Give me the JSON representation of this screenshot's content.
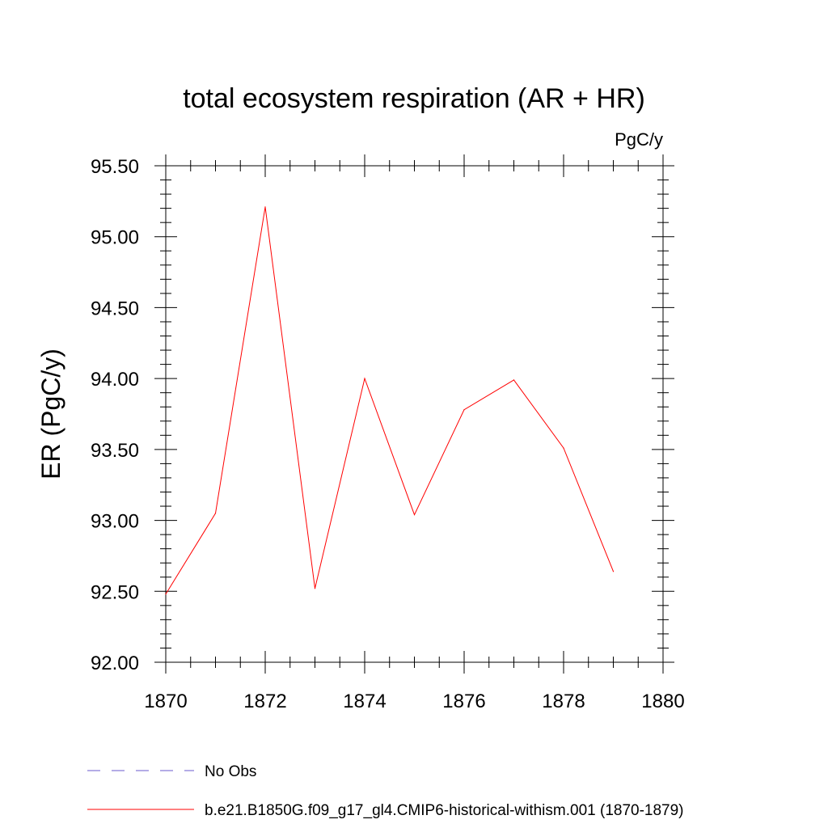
{
  "chart_data": {
    "type": "line",
    "title": "total ecosystem respiration (AR + HR)",
    "units_label": "PgC/y",
    "ylabel": "ER  (PgC/y)",
    "xlabel": "",
    "xlim": [
      1870,
      1880
    ],
    "ylim": [
      92.0,
      95.5
    ],
    "x_ticks": [
      1870,
      1872,
      1874,
      1876,
      1878,
      1880
    ],
    "x_tick_labels": [
      "1870",
      "1872",
      "1874",
      "1876",
      "1878",
      "1880"
    ],
    "y_ticks": [
      92.0,
      92.5,
      93.0,
      93.5,
      94.0,
      94.5,
      95.0,
      95.5
    ],
    "y_tick_labels": [
      "92.00",
      "92.50",
      "93.00",
      "93.50",
      "94.00",
      "94.50",
      "95.00",
      "95.50"
    ],
    "grid": false,
    "series": [
      {
        "name": "b.e21.B1850G.f09_g17_gl4.CMIP6-historical-withism.001 (1870-1879)",
        "color": "#ff0000",
        "line_style": "solid",
        "x": [
          1870,
          1871,
          1872,
          1873,
          1874,
          1875,
          1876,
          1877,
          1878,
          1879
        ],
        "y": [
          92.48,
          93.05,
          95.21,
          92.52,
          94.0,
          93.04,
          93.78,
          93.99,
          93.51,
          92.64
        ]
      }
    ],
    "legend": {
      "placement": "bottom",
      "entries": [
        {
          "label": "No Obs",
          "color": "#6a5acd",
          "line_style": "dashed"
        },
        {
          "label": "b.e21.B1850G.f09_g17_gl4.CMIP6-historical-withism.001 (1870-1879)",
          "color": "#ff0000",
          "line_style": "solid"
        }
      ]
    }
  }
}
